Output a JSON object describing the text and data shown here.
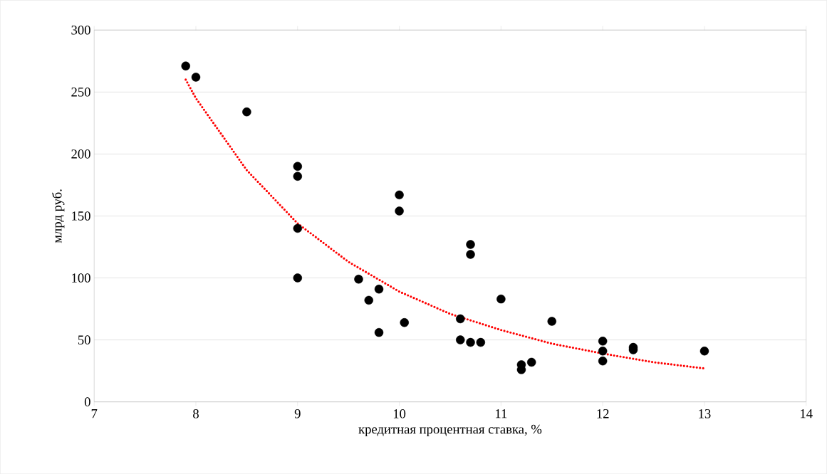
{
  "chart_data": {
    "type": "scatter",
    "xlabel": "кредитная процентная ставка, %",
    "ylabel": "млрд руб.",
    "xlim": [
      7,
      14
    ],
    "xticks": [
      7,
      8,
      9,
      10,
      11,
      12,
      13,
      14
    ],
    "ylim": [
      0,
      300
    ],
    "yticks": [
      0,
      50,
      100,
      150,
      200,
      250,
      300
    ],
    "grid": "y",
    "series": [
      {
        "color": "#000000",
        "marker": "circle",
        "x": [
          7.9,
          8.0,
          8.5,
          9,
          9,
          9,
          9,
          9.6,
          9.7,
          9.8,
          9.8,
          10,
          10,
          10.05,
          10.6,
          10.6,
          10.7,
          10.7,
          10.7,
          10.8,
          11,
          11.2,
          11.2,
          11.3,
          11.5,
          12,
          12,
          12,
          12.3,
          12.3,
          13
        ],
        "values": [
          271,
          262,
          234,
          190,
          182,
          140,
          100,
          99,
          82,
          91,
          56,
          167,
          154,
          64,
          67,
          50,
          127,
          119,
          48,
          48,
          83,
          30,
          26,
          32,
          65,
          49,
          41,
          33,
          44,
          42,
          41
        ]
      },
      {
        "type": "line",
        "color": "#ff0000",
        "marker": "none",
        "line_style": "dotted",
        "x": [
          7.9,
          8,
          8.5,
          9,
          9.5,
          10,
          10.5,
          11,
          11.5,
          12,
          12.5,
          13
        ],
        "values": [
          260,
          245,
          187,
          144,
          113,
          89,
          71,
          58,
          47,
          39,
          32,
          27
        ]
      }
    ]
  }
}
